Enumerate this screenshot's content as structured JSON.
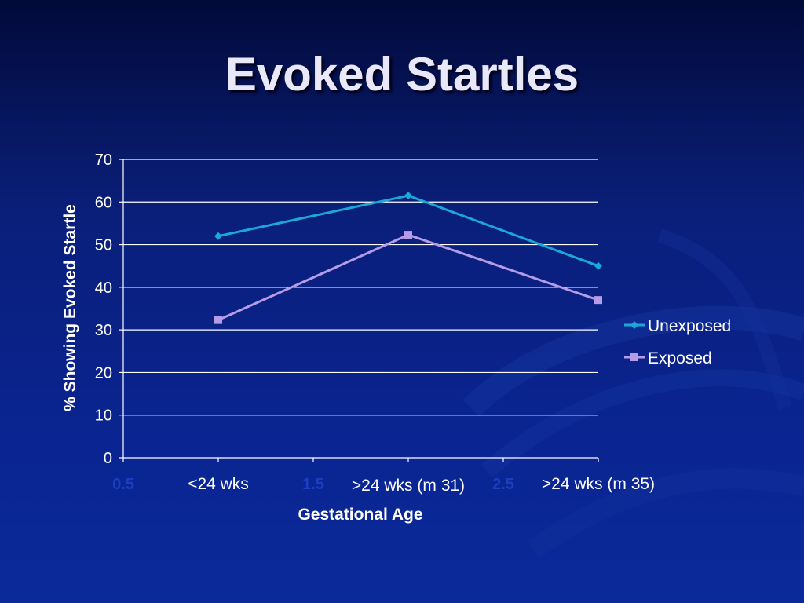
{
  "slide": {
    "title": "Evoked Startles"
  },
  "chart_data": {
    "type": "line",
    "title": "",
    "xlabel": "Gestational Age",
    "ylabel": "% Showing Evoked Startle",
    "xlim": [
      0.5,
      3
    ],
    "ylim": [
      0,
      70
    ],
    "y_ticks": [
      0,
      10,
      20,
      30,
      40,
      50,
      60,
      70
    ],
    "x_ticks": [
      0.5,
      1,
      1.5,
      2,
      2.5,
      3
    ],
    "x_tick_labels_shown": [
      "0.5",
      "1.5",
      "2.5"
    ],
    "category_labels": [
      {
        "x": 1,
        "label": "<24 wks"
      },
      {
        "x": 2,
        "label": ">24 wks (m 31)"
      },
      {
        "x": 3,
        "label": ">24 wks (m 35)"
      }
    ],
    "grid": true,
    "legend_position": "right",
    "series": [
      {
        "name": "Unexposed",
        "color": "#19a8d8",
        "marker": "diamond",
        "points": [
          {
            "x": 1,
            "y": 52
          },
          {
            "x": 2,
            "y": 61.5
          },
          {
            "x": 3,
            "y": 45
          }
        ]
      },
      {
        "name": "Exposed",
        "color": "#b49ce6",
        "marker": "square",
        "points": [
          {
            "x": 1,
            "y": 32.3
          },
          {
            "x": 2,
            "y": 52.3
          },
          {
            "x": 3,
            "y": 37
          }
        ]
      }
    ]
  }
}
